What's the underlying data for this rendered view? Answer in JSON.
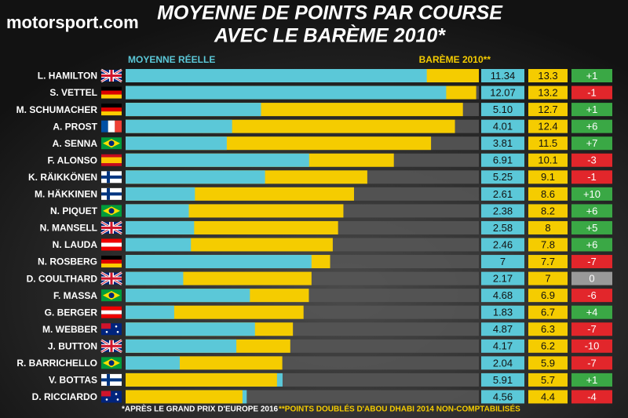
{
  "chart_data": {
    "type": "bar",
    "orientation": "horizontal",
    "brand": "motorsport.com",
    "title": [
      "MOYENNE DE POINTS PAR COURSE",
      "AVEC LE BARÈME 2010*"
    ],
    "categories": [
      "L. HAMILTON",
      "S. VETTEL",
      "M. SCHUMACHER",
      "A. PROST",
      "A. SENNA",
      "F. ALONSO",
      "K. RÄIKKÖNEN",
      "M. HÄKKINEN",
      "N. PIQUET",
      "N. MANSELL",
      "N. LAUDA",
      "N. ROSBERG",
      "D. COULTHARD",
      "F. MASSA",
      "G. BERGER",
      "M. WEBBER",
      "J. BUTTON",
      "R. BARRICHELLO",
      "V. BOTTAS",
      "D. RICCIARDO"
    ],
    "series": [
      {
        "name": "MOYENNE RÉELLE",
        "color": "#5bc8d8",
        "values": [
          11.34,
          12.07,
          5.1,
          4.01,
          3.81,
          6.91,
          5.25,
          2.61,
          2.38,
          2.58,
          2.46,
          7,
          2.17,
          4.68,
          1.83,
          4.87,
          4.17,
          2.04,
          5.91,
          4.56
        ],
        "value_labels": [
          "11.34",
          "12.07",
          "5.10",
          "4.01",
          "3.81",
          "6.91",
          "5.25",
          "2.61",
          "2.38",
          "2.58",
          "2.46",
          "7",
          "2.17",
          "4.68",
          "1.83",
          "4.87",
          "4.17",
          "2.04",
          "5.91",
          "4.56"
        ]
      },
      {
        "name": "BARÈME 2010**",
        "color": "#f5cc00",
        "values": [
          13.3,
          13.2,
          12.7,
          12.4,
          11.5,
          10.1,
          9.1,
          8.6,
          8.2,
          8,
          7.8,
          7.7,
          7,
          6.9,
          6.7,
          6.3,
          6.2,
          5.9,
          5.7,
          4.4
        ],
        "value_labels": [
          "13.3",
          "13.2",
          "12.7",
          "12.4",
          "11.5",
          "10.1",
          "9.1",
          "8.6",
          "8.2",
          "8",
          "7.8",
          "7.7",
          "7",
          "6.9",
          "6.7",
          "6.3",
          "6.2",
          "5.9",
          "5.7",
          "4.4"
        ]
      }
    ],
    "differences": {
      "values": [
        1,
        -1,
        1,
        6,
        7,
        -3,
        -1,
        10,
        6,
        5,
        6,
        -7,
        0,
        -6,
        4,
        -7,
        -10,
        -7,
        1,
        -4
      ],
      "value_labels": [
        "+1",
        "-1",
        "+1",
        "+6",
        "+7",
        "-3",
        "-1",
        "+10",
        "+6",
        "+5",
        "+6",
        "-7",
        "0",
        "-6",
        "+4",
        "-7",
        "-10",
        "-7",
        "+1",
        "-4"
      ]
    },
    "xlim": [
      0,
      13.3
    ],
    "footnotes": [
      "*APRÈS LE GRAND PRIX D'EUROPE 2016",
      "**POINTS DOUBLÉS D'ABOU DHABI 2014 NON-COMPTABILISÉS"
    ]
  }
}
